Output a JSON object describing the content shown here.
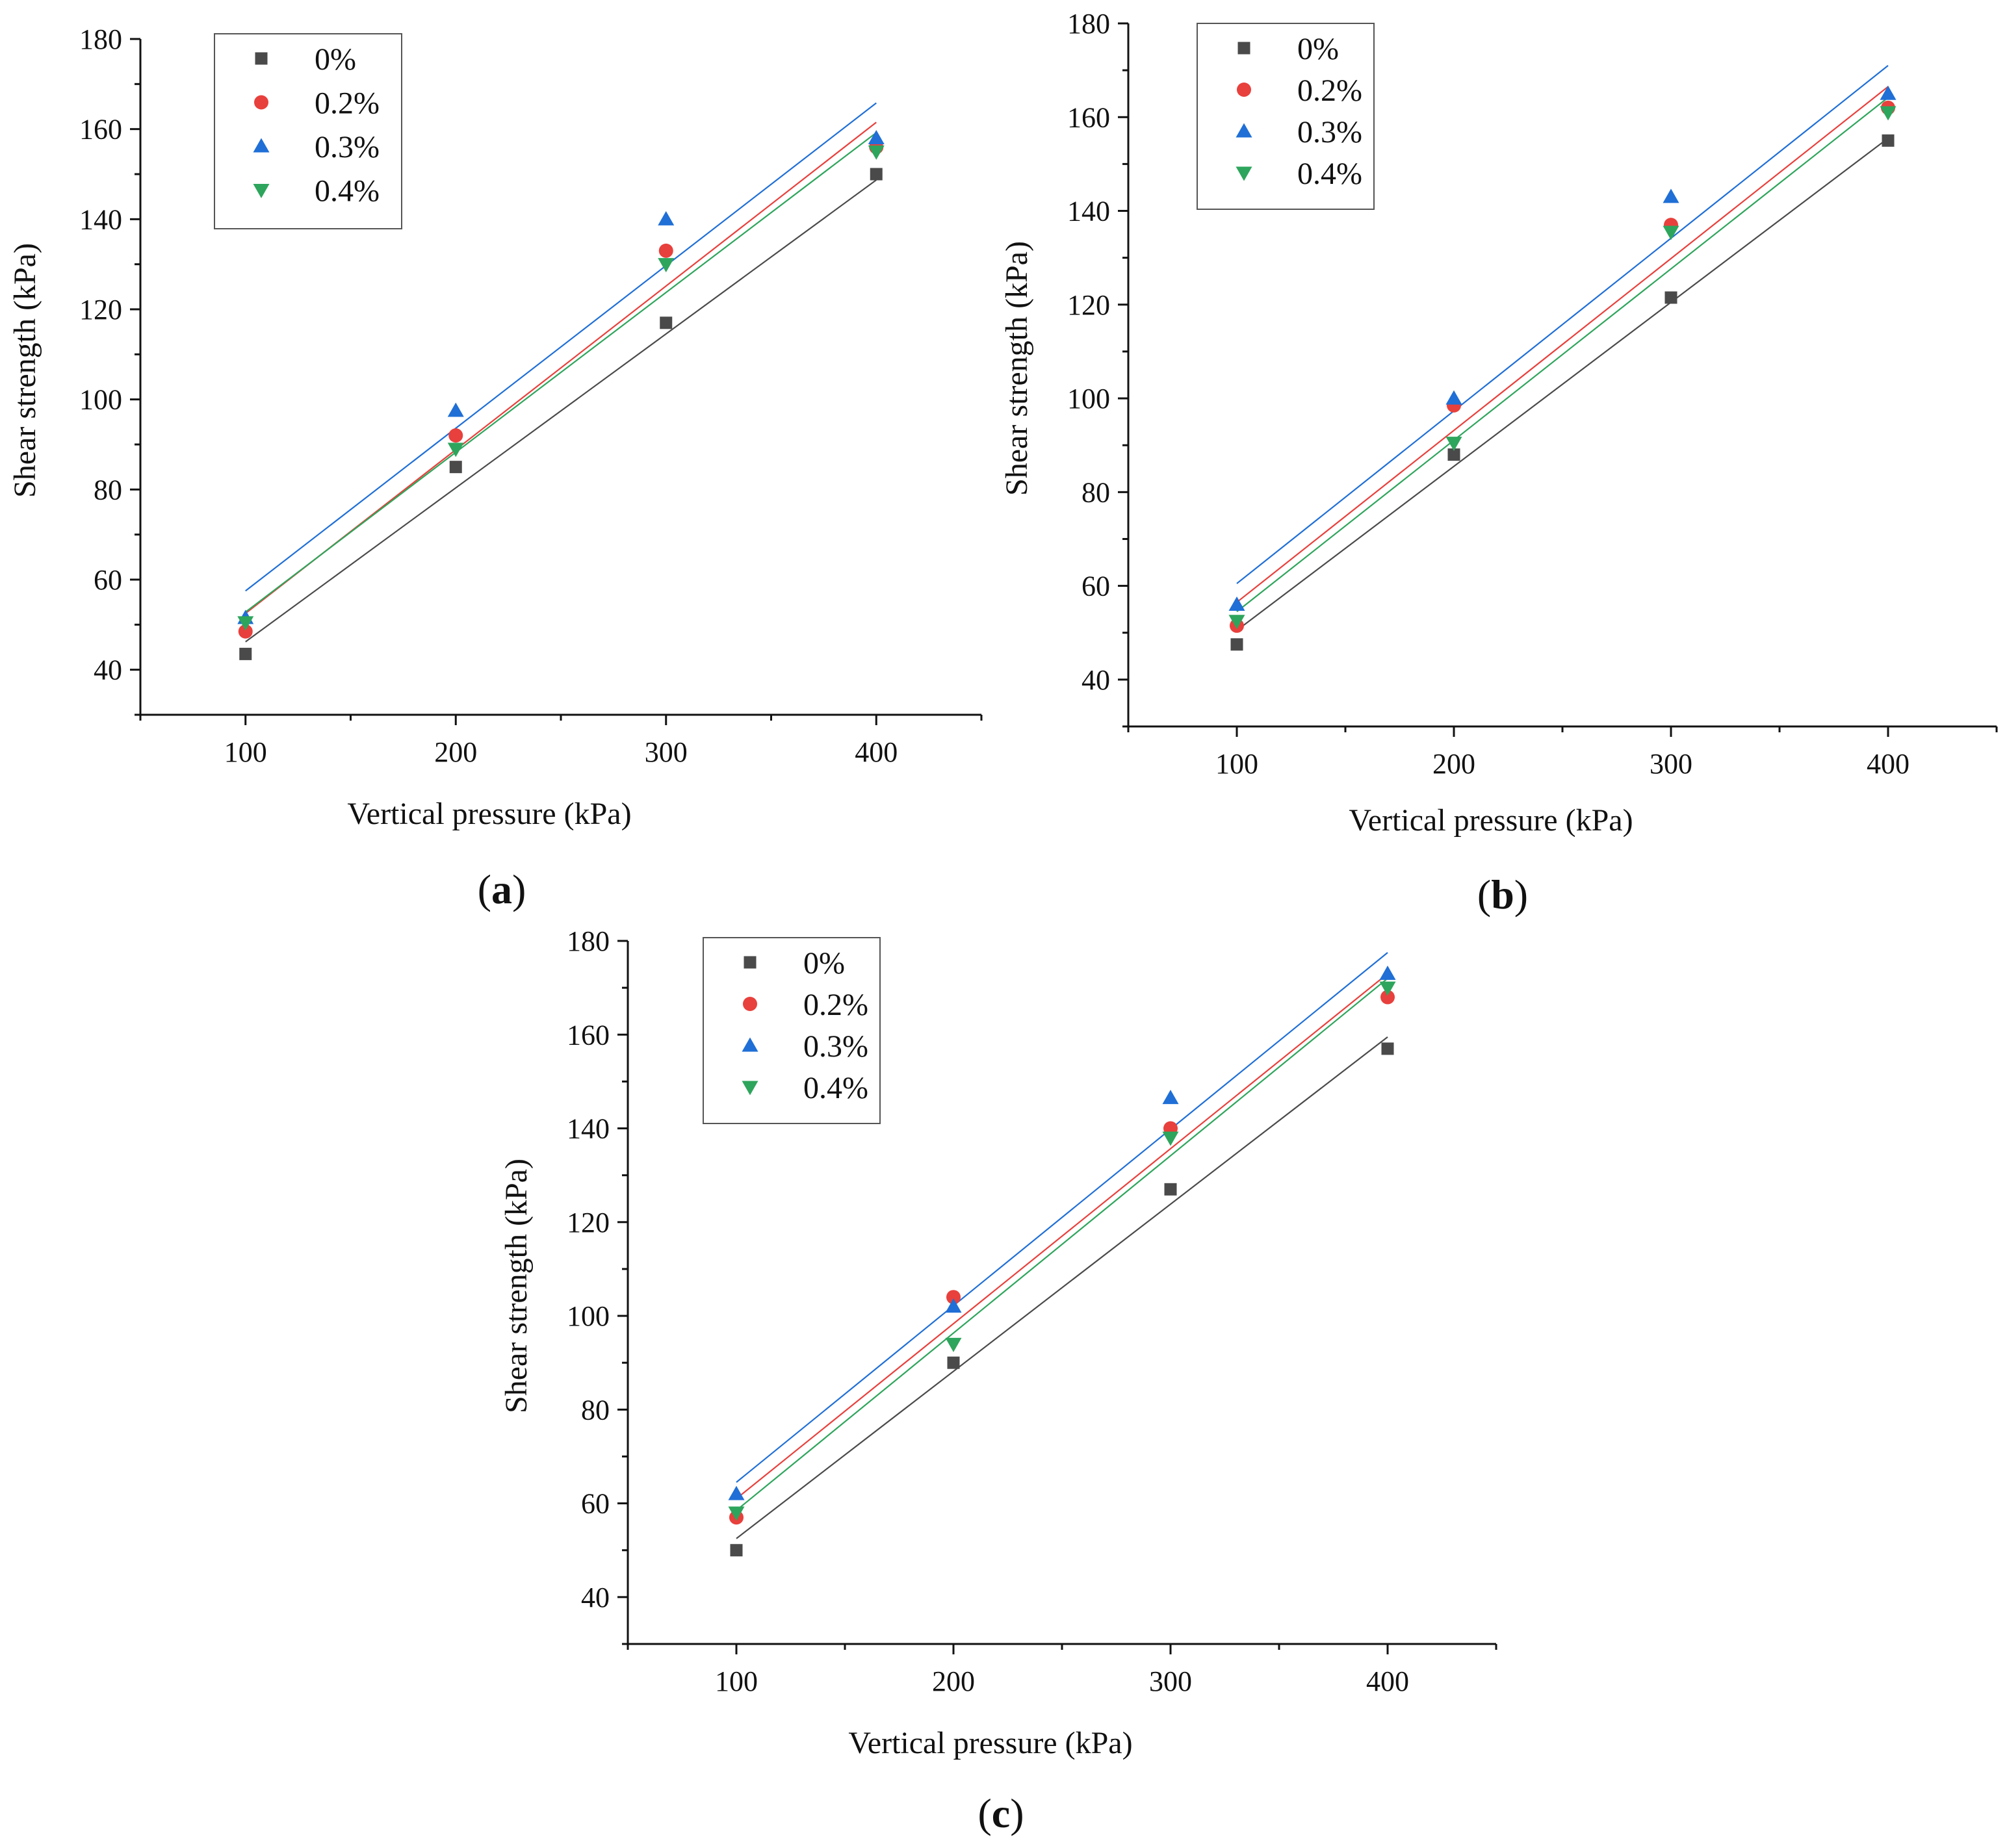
{
  "chart_data": [
    {
      "type": "scatter",
      "panel_label": "(a)",
      "panel_letter": "a",
      "xlabel": "Vertical pressure (kPa)",
      "ylabel": "Shear strength (kPa)",
      "xlim": [
        50,
        450
      ],
      "ylim": [
        30,
        180
      ],
      "x_ticks": [
        100,
        200,
        300,
        400
      ],
      "y_ticks": [
        40,
        60,
        80,
        100,
        120,
        140,
        160,
        180
      ],
      "legend_position": "top-left",
      "x": [
        100,
        200,
        300,
        400
      ],
      "series": [
        {
          "name": "0%",
          "color": "#4a4a4a",
          "marker": "square",
          "values": [
            43.5,
            85,
            117,
            150
          ],
          "fit": [
            46.2,
            148.7
          ]
        },
        {
          "name": "0.2%",
          "color": "#e8403c",
          "marker": "circle",
          "values": [
            48.5,
            92,
            133,
            156
          ],
          "fit": [
            52.5,
            161.5
          ]
        },
        {
          "name": "0.3%",
          "color": "#1f6fd6",
          "marker": "triangle-up",
          "values": [
            51.5,
            97.5,
            140,
            158
          ],
          "fit": [
            57.5,
            165.8
          ]
        },
        {
          "name": "0.4%",
          "color": "#2ea55c",
          "marker": "triangle-down",
          "values": [
            50.5,
            89,
            130,
            155
          ],
          "fit": [
            52.8,
            159.2
          ]
        }
      ]
    },
    {
      "type": "scatter",
      "panel_label": "(b)",
      "panel_letter": "b",
      "xlabel": "Vertical pressure (kPa)",
      "ylabel": "Shear strength (kPa)",
      "xlim": [
        50,
        450
      ],
      "ylim": [
        30,
        180
      ],
      "x_ticks": [
        100,
        200,
        300,
        400
      ],
      "y_ticks": [
        40,
        60,
        80,
        100,
        120,
        140,
        160,
        180
      ],
      "legend_position": "top-left",
      "x": [
        100,
        200,
        300,
        400
      ],
      "series": [
        {
          "name": "0%",
          "color": "#4a4a4a",
          "marker": "square",
          "values": [
            47.5,
            88,
            121.5,
            155
          ],
          "fit": [
            50.5,
            155.5
          ]
        },
        {
          "name": "0.2%",
          "color": "#e8403c",
          "marker": "circle",
          "values": [
            51.5,
            98.5,
            137,
            162
          ],
          "fit": [
            56.5,
            166.5
          ]
        },
        {
          "name": "0.3%",
          "color": "#1f6fd6",
          "marker": "triangle-up",
          "values": [
            56,
            100,
            143,
            165
          ],
          "fit": [
            60.5,
            171
          ]
        },
        {
          "name": "0.4%",
          "color": "#2ea55c",
          "marker": "triangle-down",
          "values": [
            52.5,
            90.5,
            135.5,
            161
          ],
          "fit": [
            54.5,
            164.2
          ]
        }
      ]
    },
    {
      "type": "scatter",
      "panel_label": "(c)",
      "panel_letter": "c",
      "xlabel": "Vertical pressure (kPa)",
      "ylabel": "Shear strength (kPa)",
      "xlim": [
        50,
        450
      ],
      "ylim": [
        30,
        180
      ],
      "x_ticks": [
        100,
        200,
        300,
        400
      ],
      "y_ticks": [
        40,
        60,
        80,
        100,
        120,
        140,
        160,
        180
      ],
      "legend_position": "top-left",
      "x": [
        100,
        200,
        300,
        400
      ],
      "series": [
        {
          "name": "0%",
          "color": "#4a4a4a",
          "marker": "square",
          "values": [
            50,
            90,
            127,
            157
          ],
          "fit": [
            52.5,
            159.5
          ]
        },
        {
          "name": "0.2%",
          "color": "#e8403c",
          "marker": "circle",
          "values": [
            57,
            104,
            140,
            168
          ],
          "fit": [
            61,
            173
          ]
        },
        {
          "name": "0.3%",
          "color": "#1f6fd6",
          "marker": "triangle-up",
          "values": [
            62,
            102,
            146.5,
            173
          ],
          "fit": [
            64.5,
            177.5
          ]
        },
        {
          "name": "0.4%",
          "color": "#2ea55c",
          "marker": "triangle-down",
          "values": [
            58,
            94,
            138,
            170
          ],
          "fit": [
            58.5,
            172
          ]
        }
      ]
    }
  ]
}
